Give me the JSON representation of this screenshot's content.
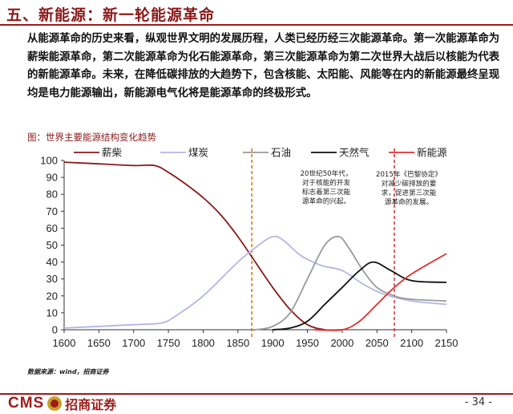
{
  "header": {
    "title": "五、新能源：新一轮能源革命",
    "intro": "从能源革命的历史来看，纵观世界文明的发展历程，人类已经历经三次能源革命。第一次能源革命为薪柴能源革命，第二次能源革命为化石能源革命，第三次能源革命为第二次世界大战后以核能为代表的新能源革命。未来，在降低碳排放的大趋势下，包含核能、太阳能、风能等在内的新能源最终呈现均是电力能源输出，新能源电气化将是能源革命的终极形式。"
  },
  "chart_data": {
    "type": "line",
    "title": "图：世界主要能源结构变化趋势",
    "xlim": [
      1600,
      2150
    ],
    "ylim": [
      0,
      100
    ],
    "x_ticks": [
      1600,
      1650,
      1700,
      1750,
      1800,
      1850,
      1900,
      1950,
      2000,
      2050,
      2100,
      2150
    ],
    "y_ticks": [
      0,
      10,
      20,
      30,
      40,
      50,
      60,
      70,
      80,
      90,
      100
    ],
    "legend_position": "top",
    "series": [
      {
        "name": "薪柴",
        "color": "#8b1a1a",
        "points": [
          [
            1600,
            99
          ],
          [
            1650,
            98
          ],
          [
            1700,
            97
          ],
          [
            1730,
            97
          ],
          [
            1750,
            93
          ],
          [
            1775,
            86
          ],
          [
            1800,
            78
          ],
          [
            1825,
            68
          ],
          [
            1850,
            55
          ],
          [
            1875,
            40
          ],
          [
            1900,
            25
          ],
          [
            1925,
            12
          ],
          [
            1950,
            3
          ],
          [
            1975,
            0
          ],
          [
            2000,
            0
          ]
        ]
      },
      {
        "name": "煤炭",
        "color": "#b4b4e6",
        "points": [
          [
            1600,
            1
          ],
          [
            1650,
            2
          ],
          [
            1700,
            3
          ],
          [
            1740,
            4
          ],
          [
            1760,
            8
          ],
          [
            1800,
            20
          ],
          [
            1850,
            40
          ],
          [
            1880,
            50
          ],
          [
            1900,
            55
          ],
          [
            1915,
            53
          ],
          [
            1940,
            44
          ],
          [
            1970,
            38
          ],
          [
            2000,
            35
          ],
          [
            2030,
            27
          ],
          [
            2060,
            21
          ],
          [
            2100,
            17
          ],
          [
            2150,
            15
          ]
        ]
      },
      {
        "name": "石油",
        "color": "#9a9a9a",
        "points": [
          [
            1875,
            0
          ],
          [
            1900,
            2
          ],
          [
            1925,
            10
          ],
          [
            1950,
            30
          ],
          [
            1975,
            50
          ],
          [
            1995,
            55
          ],
          [
            2010,
            48
          ],
          [
            2030,
            35
          ],
          [
            2050,
            25
          ],
          [
            2075,
            20
          ],
          [
            2100,
            18
          ],
          [
            2150,
            17
          ]
        ]
      },
      {
        "name": "天然气",
        "color": "#111111",
        "points": [
          [
            1900,
            0
          ],
          [
            1925,
            1
          ],
          [
            1950,
            5
          ],
          [
            1975,
            15
          ],
          [
            2000,
            25
          ],
          [
            2025,
            35
          ],
          [
            2045,
            40
          ],
          [
            2070,
            35
          ],
          [
            2100,
            29
          ],
          [
            2150,
            28
          ]
        ]
      },
      {
        "name": "新能源",
        "color": "#e03030",
        "points": [
          [
            1960,
            0
          ],
          [
            2000,
            0
          ],
          [
            2025,
            5
          ],
          [
            2050,
            15
          ],
          [
            2075,
            25
          ],
          [
            2100,
            33
          ],
          [
            2150,
            45
          ]
        ]
      }
    ],
    "markers": [
      {
        "x": 1870,
        "color": "#cc6a00"
      },
      {
        "x": 2075,
        "color": "#cc2020"
      }
    ],
    "annotations": [
      {
        "id": "nuclear",
        "lines": [
          "20世纪50年代，",
          "对于核能的开发",
          "标志着第三次能",
          "源革命的兴起。"
        ]
      },
      {
        "id": "paris",
        "lines": [
          "2015年《巴黎协定》",
          "对减少碳排放的要",
          "求，促进第三次能",
          "源革命的发展。"
        ]
      }
    ]
  },
  "source": "数据来源：wind，招商证券",
  "footer": {
    "logo_text": "CMS",
    "logo_cn": "招商证券",
    "page": "- 34 -"
  }
}
